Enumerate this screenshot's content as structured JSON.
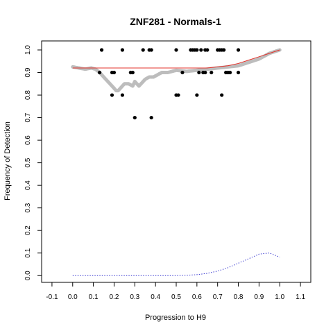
{
  "chart_data": {
    "type": "scatter",
    "title": "ZNF281 - Normals-1",
    "xlabel": "Progression to H9",
    "ylabel": "Frequency of Detection",
    "xlim": [
      -0.15,
      1.15
    ],
    "ylim": [
      -0.03,
      1.04
    ],
    "grid": false,
    "x_ticks": [
      -0.1,
      0.0,
      0.1,
      0.2,
      0.3,
      0.4,
      0.5,
      0.6,
      0.7,
      0.8,
      0.9,
      1.0,
      1.1
    ],
    "x_tick_labels": [
      "-0.1",
      "0.0",
      "0.1",
      "0.2",
      "0.3",
      "0.4",
      "0.5",
      "0.6",
      "0.7",
      "0.8",
      "0.9",
      "1.0",
      "1.1"
    ],
    "y_ticks": [
      0.0,
      0.1,
      0.2,
      0.3,
      0.4,
      0.5,
      0.6,
      0.7,
      0.8,
      0.9,
      1.0
    ],
    "y_tick_labels": [
      "0.0",
      "0.1",
      "0.2",
      "0.3",
      "0.4",
      "0.5",
      "0.6",
      "0.7",
      "0.8",
      "0.9",
      "1.0"
    ],
    "series": [
      {
        "type": "scatter",
        "color": "#000000",
        "x": [
          0.14,
          0.24,
          0.34,
          0.37,
          0.38,
          0.5,
          0.57,
          0.58,
          0.59,
          0.6,
          0.62,
          0.64,
          0.65,
          0.7,
          0.71,
          0.72,
          0.73,
          0.8,
          0.13,
          0.19,
          0.2,
          0.28,
          0.29,
          0.53,
          0.61,
          0.63,
          0.64,
          0.67,
          0.74,
          0.75,
          0.76,
          0.8,
          0.19,
          0.24,
          0.5,
          0.51,
          0.6,
          0.72,
          0.3,
          0.38
        ],
        "y": [
          1.0,
          1.0,
          1.0,
          1.0,
          1.0,
          1.0,
          1.0,
          1.0,
          1.0,
          1.0,
          1.0,
          1.0,
          1.0,
          1.0,
          1.0,
          1.0,
          1.0,
          1.0,
          0.9,
          0.9,
          0.9,
          0.9,
          0.9,
          0.9,
          0.9,
          0.9,
          0.9,
          0.9,
          0.9,
          0.9,
          0.9,
          0.9,
          0.8,
          0.8,
          0.8,
          0.8,
          0.8,
          0.8,
          0.7,
          0.7
        ]
      },
      {
        "type": "line",
        "style": "thick-gray",
        "color": "#bdbdbd",
        "x": [
          0.0,
          0.03,
          0.06,
          0.09,
          0.11,
          0.13,
          0.15,
          0.16,
          0.17,
          0.18,
          0.19,
          0.2,
          0.21,
          0.22,
          0.23,
          0.24,
          0.25,
          0.27,
          0.29,
          0.3,
          0.31,
          0.32,
          0.33,
          0.35,
          0.37,
          0.39,
          0.41,
          0.43,
          0.46,
          0.5,
          0.55,
          0.6,
          0.65,
          0.7,
          0.75,
          0.8,
          0.85,
          0.9,
          0.95,
          1.0
        ],
        "y": [
          0.925,
          0.92,
          0.915,
          0.92,
          0.915,
          0.9,
          0.88,
          0.87,
          0.86,
          0.85,
          0.84,
          0.83,
          0.82,
          0.82,
          0.83,
          0.84,
          0.85,
          0.85,
          0.84,
          0.86,
          0.85,
          0.84,
          0.85,
          0.87,
          0.88,
          0.88,
          0.89,
          0.9,
          0.9,
          0.91,
          0.905,
          0.91,
          0.915,
          0.92,
          0.925,
          0.93,
          0.945,
          0.96,
          0.985,
          1.0
        ]
      },
      {
        "type": "line",
        "style": "solid-red",
        "color": "#e3332c",
        "x": [
          0.0,
          0.1,
          0.2,
          0.3,
          0.4,
          0.5,
          0.6,
          0.65,
          0.7,
          0.75,
          0.8,
          0.85,
          0.9,
          0.95,
          1.0
        ],
        "y": [
          0.92,
          0.92,
          0.92,
          0.92,
          0.92,
          0.92,
          0.92,
          0.92,
          0.925,
          0.93,
          0.94,
          0.955,
          0.97,
          0.985,
          1.0
        ]
      },
      {
        "type": "line",
        "style": "dotted-blue",
        "color": "#3b3bd1",
        "x": [
          0.0,
          0.1,
          0.2,
          0.3,
          0.4,
          0.5,
          0.55,
          0.6,
          0.65,
          0.7,
          0.75,
          0.8,
          0.85,
          0.9,
          0.95,
          1.0
        ],
        "y": [
          0.0,
          0.0,
          0.0,
          0.0,
          0.0,
          0.0,
          0.001,
          0.004,
          0.01,
          0.02,
          0.035,
          0.055,
          0.075,
          0.095,
          0.1,
          0.082
        ]
      }
    ]
  }
}
